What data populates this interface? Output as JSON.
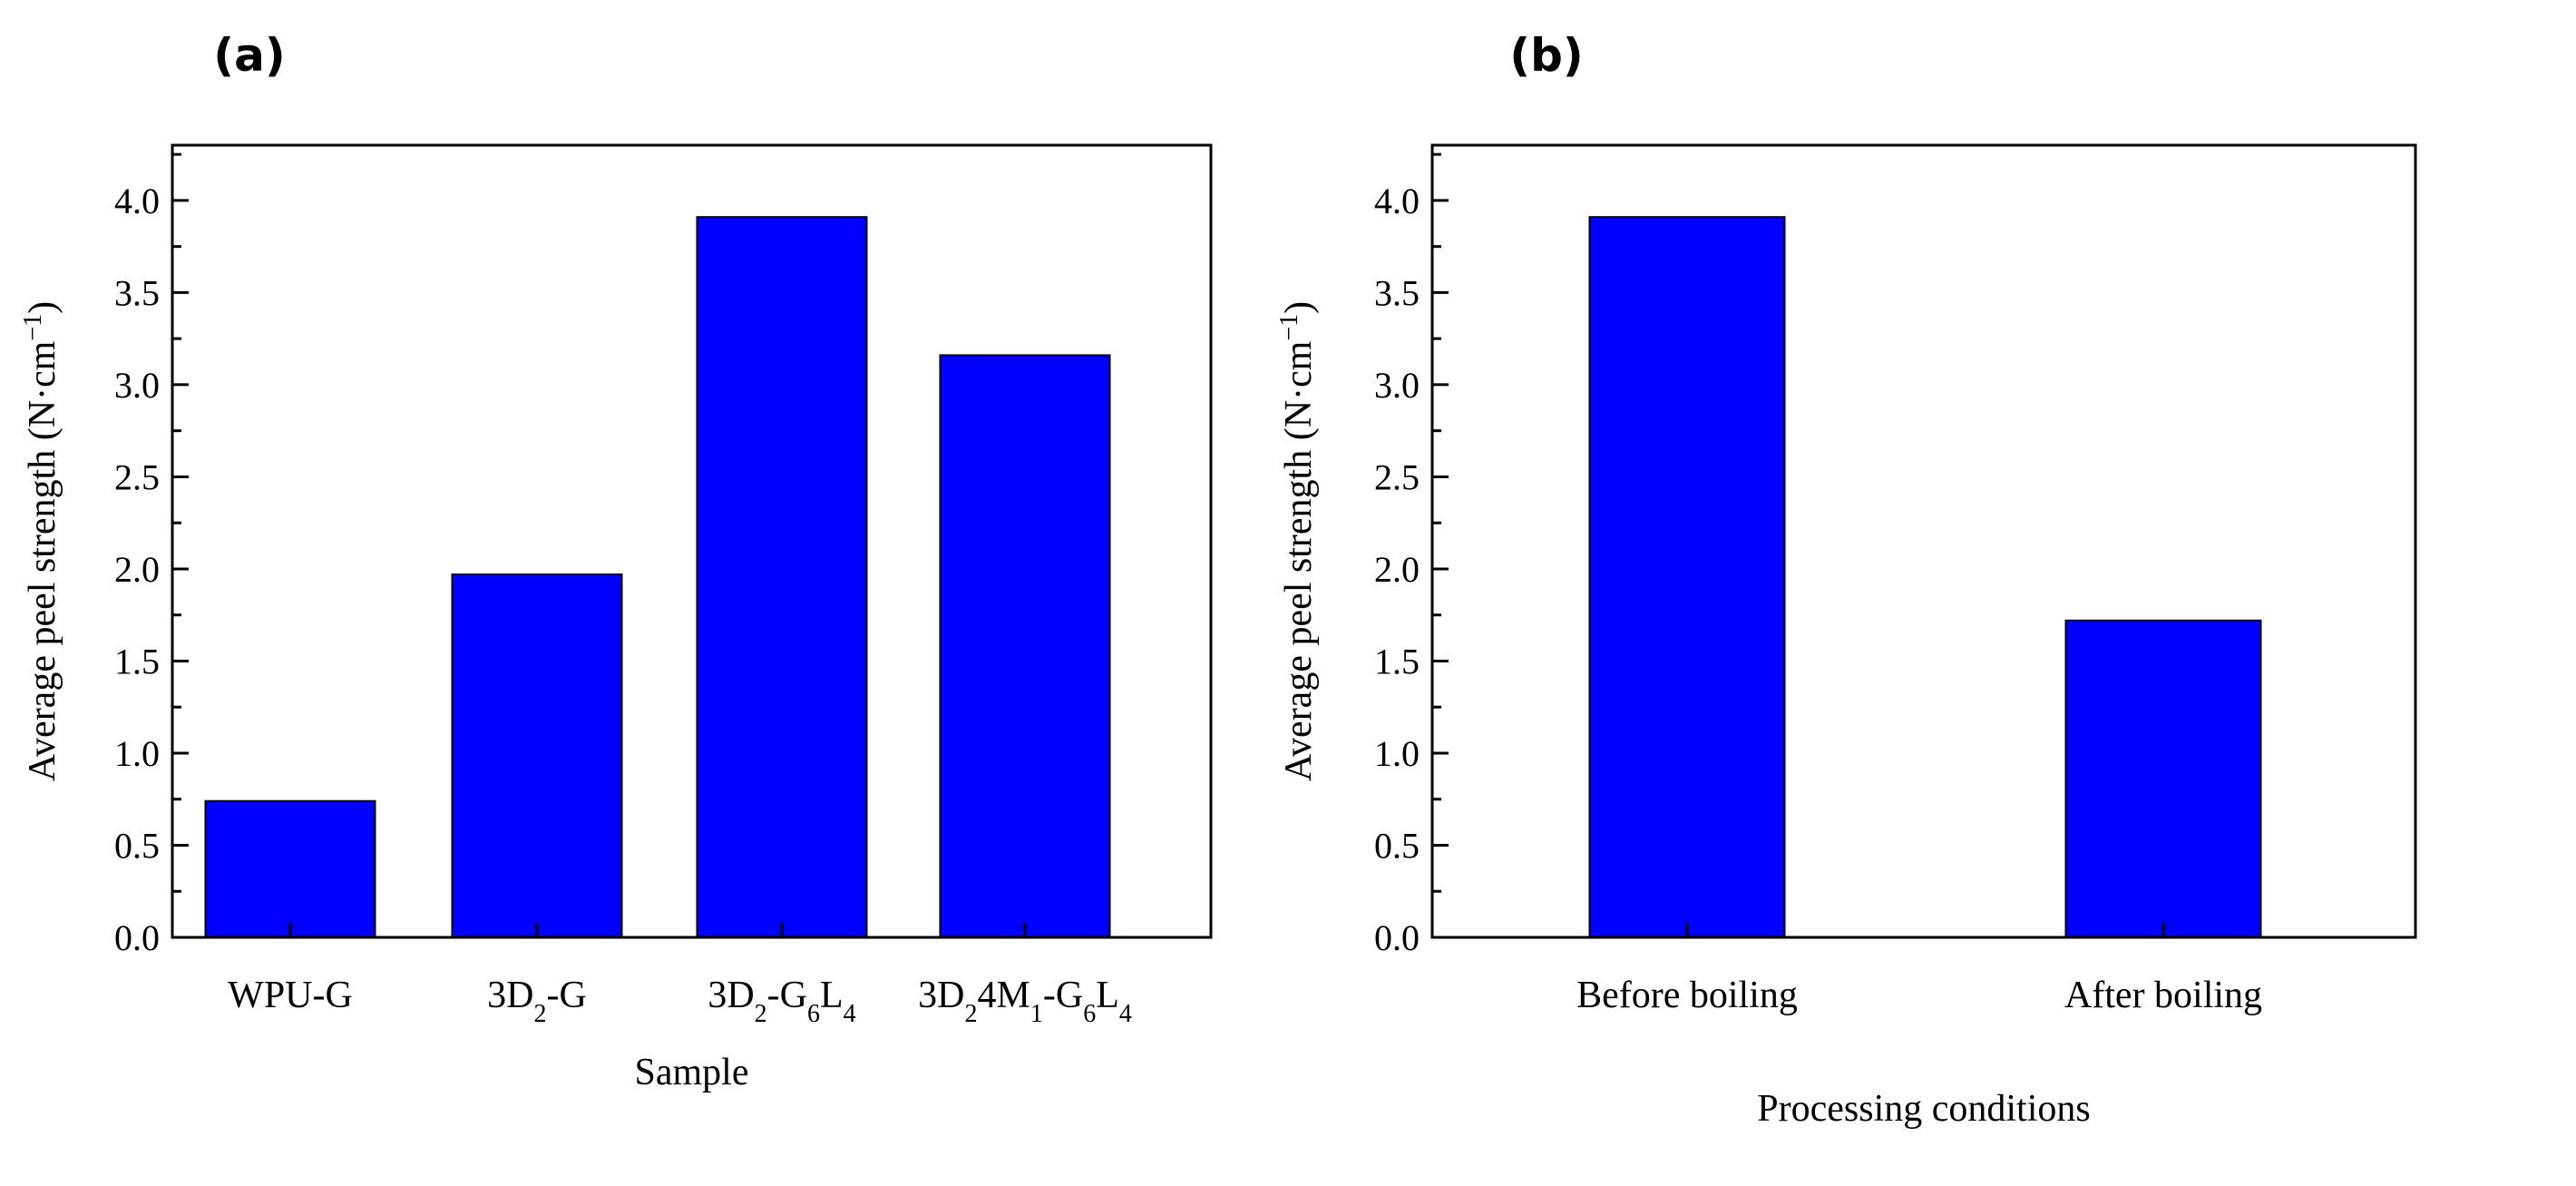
{
  "figure": {
    "bar_color": "#0000ff",
    "bar_edge_color": "#000000"
  },
  "chart_data": [
    {
      "panel_label": "(a)",
      "type": "bar",
      "title": "",
      "xlabel": "Sample",
      "ylabel": "Average peel strength (N·cm−1)",
      "ylabel_parts": {
        "main": "Average peel strength (N·cm",
        "sup": "−1",
        "close": ")"
      },
      "ylim": [
        0,
        4.3
      ],
      "yticks": [
        0.0,
        0.5,
        1.0,
        1.5,
        2.0,
        2.5,
        3.0,
        3.5,
        4.0
      ],
      "ytick_labels": [
        "0.0",
        "0.5",
        "1.0",
        "1.5",
        "2.0",
        "2.5",
        "3.0",
        "3.5",
        "4.0"
      ],
      "categories": [
        "WPU-G",
        "3D2-G",
        "3D2-G6L4",
        "3D24M1-G6L4"
      ],
      "category_parts": [
        [
          {
            "t": "WPU-G",
            "s": ""
          }
        ],
        [
          {
            "t": "3D",
            "s": ""
          },
          {
            "t": "2",
            "s": "sub"
          },
          {
            "t": "-G",
            "s": ""
          }
        ],
        [
          {
            "t": "3D",
            "s": ""
          },
          {
            "t": "2",
            "s": "sub"
          },
          {
            "t": "-G",
            "s": ""
          },
          {
            "t": "6",
            "s": "sub"
          },
          {
            "t": "L",
            "s": ""
          },
          {
            "t": "4",
            "s": "sub"
          }
        ],
        [
          {
            "t": "3D",
            "s": ""
          },
          {
            "t": "2",
            "s": "sub"
          },
          {
            "t": "4M",
            "s": ""
          },
          {
            "t": "1",
            "s": "sub"
          },
          {
            "t": "-G",
            "s": ""
          },
          {
            "t": "6",
            "s": "sub"
          },
          {
            "t": "L",
            "s": ""
          },
          {
            "t": "4",
            "s": "sub"
          }
        ]
      ],
      "values": [
        0.74,
        1.97,
        3.91,
        3.16
      ]
    },
    {
      "panel_label": "(b)",
      "type": "bar",
      "title": "",
      "xlabel": "Processing conditions",
      "ylabel": "Average peel strength (N·cm−1)",
      "ylabel_parts": {
        "main": "Average peel strength (N·cm",
        "sup": "−1",
        "close": ")"
      },
      "ylim": [
        0,
        4.3
      ],
      "yticks": [
        0.0,
        0.5,
        1.0,
        1.5,
        2.0,
        2.5,
        3.0,
        3.5,
        4.0
      ],
      "ytick_labels": [
        "0.0",
        "0.5",
        "1.0",
        "1.5",
        "2.0",
        "2.5",
        "3.0",
        "3.5",
        "4.0"
      ],
      "categories": [
        "Before boiling",
        "After boiling"
      ],
      "category_parts": [
        [
          {
            "t": "Before boiling",
            "s": ""
          }
        ],
        [
          {
            "t": "After boiling",
            "s": ""
          }
        ]
      ],
      "values": [
        3.91,
        1.72
      ]
    }
  ]
}
